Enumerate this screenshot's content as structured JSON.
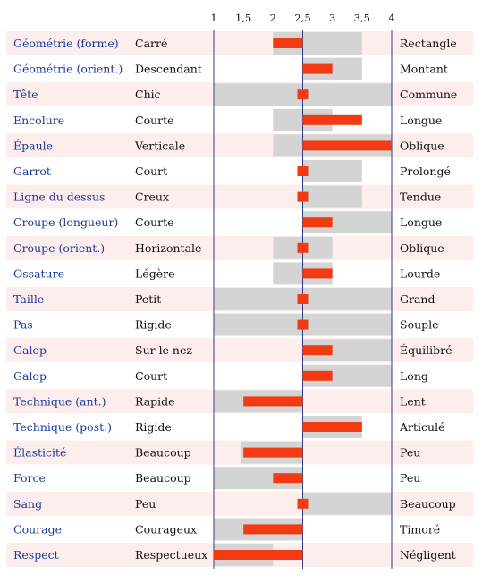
{
  "chart_data": {
    "type": "bar",
    "xlim": [
      1,
      4
    ],
    "baseline": 2.5,
    "x_ticks": [
      "1",
      "1,5",
      "2",
      "2,5",
      "3",
      "3,5",
      "4"
    ],
    "grid": false,
    "rows": [
      {
        "trait": "Géométrie (forme)",
        "low": "Carré",
        "high": "Rectangle",
        "range": [
          2,
          3.5
        ],
        "value": 2
      },
      {
        "trait": "Géométrie (orient.)",
        "low": "Descendant",
        "high": "Montant",
        "range": [
          2.5,
          3.5
        ],
        "value": 3
      },
      {
        "trait": "Tête",
        "low": "Chic",
        "high": "Commune",
        "range": [
          1,
          4
        ],
        "value": 2.6
      },
      {
        "trait": "Encolure",
        "low": "Courte",
        "high": "Longue",
        "range": [
          2,
          3
        ],
        "value": 3.5
      },
      {
        "trait": "Épaule",
        "low": "Verticale",
        "high": "Oblique",
        "range": [
          2,
          4
        ],
        "value": 4
      },
      {
        "trait": "Garrot",
        "low": "Court",
        "high": "Prolongé",
        "range": [
          2.5,
          3.5
        ],
        "value": 2.4
      },
      {
        "trait": "Ligne du dessus",
        "low": "Creux",
        "high": "Tendue",
        "range": [
          2.5,
          3.5
        ],
        "value": 2.4
      },
      {
        "trait": "Croupe (longueur)",
        "low": "Courte",
        "high": "Longue",
        "range": [
          2.5,
          4
        ],
        "value": 3
      },
      {
        "trait": "Croupe (orient.)",
        "low": "Horizontale",
        "high": "Oblique",
        "range": [
          2,
          3
        ],
        "value": 2.4
      },
      {
        "trait": "Ossature",
        "low": "Légère",
        "high": "Lourde",
        "range": [
          2,
          3
        ],
        "value": 3
      },
      {
        "trait": "Taille",
        "low": "Petit",
        "high": "Grand",
        "range": [
          1,
          4
        ],
        "value": 2.4
      },
      {
        "trait": "Pas",
        "low": "Rigide",
        "high": "Souple",
        "range": [
          1,
          4
        ],
        "value": 2.4
      },
      {
        "trait": "Galop",
        "low": "Sur le nez",
        "high": "Équilibré",
        "range": [
          2.5,
          4
        ],
        "value": 3
      },
      {
        "trait": "Galop",
        "low": "Court",
        "high": "Long",
        "range": [
          2.5,
          4
        ],
        "value": 3
      },
      {
        "trait": "Technique (ant.)",
        "low": "Rapide",
        "high": "Lent",
        "range": [
          1,
          2.5
        ],
        "value": 1.5
      },
      {
        "trait": "Technique (post.)",
        "low": "Rigide",
        "high": "Articulé",
        "range": [
          2.5,
          3.5
        ],
        "value": 3.5
      },
      {
        "trait": "Élasticité",
        "low": "Beaucoup",
        "high": "Peu",
        "range": [
          1.45,
          2.5
        ],
        "value": 1.5
      },
      {
        "trait": "Force",
        "low": "Beaucoup",
        "high": "Peu",
        "range": [
          1,
          2.5
        ],
        "value": 2
      },
      {
        "trait": "Sang",
        "low": "Peu",
        "high": "Beaucoup",
        "range": [
          2.5,
          4
        ],
        "value": 2.6
      },
      {
        "trait": "Courage",
        "low": "Courageux",
        "high": "Timoré",
        "range": [
          1,
          2.5
        ],
        "value": 1.5
      },
      {
        "trait": "Respect",
        "low": "Respectueux",
        "high": "Négligent",
        "range": [
          1,
          2
        ],
        "value": 1
      }
    ]
  },
  "colors": {
    "band_pink": "#fdeeed",
    "band_white": "#ffffff",
    "range_gray": "#d4d4d4",
    "bar_red": "#f23b12",
    "axis_line": "#2b3f8c",
    "trait_text": "#1a3a9c",
    "label_text": "#111111"
  }
}
